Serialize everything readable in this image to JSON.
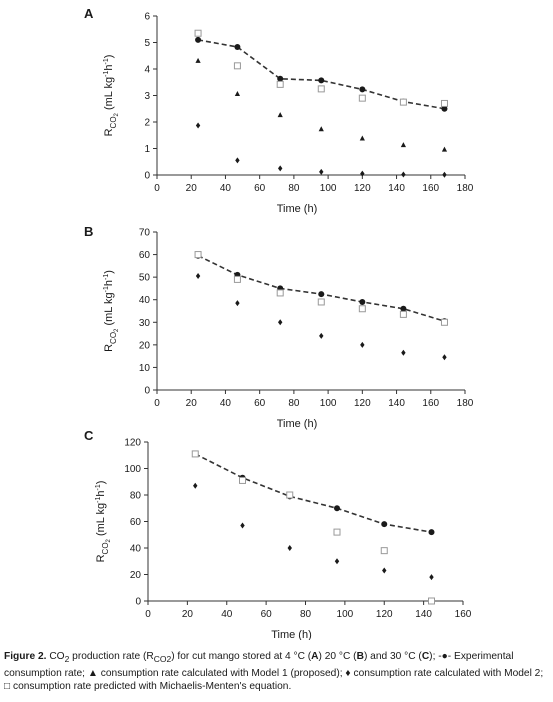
{
  "chart_data": [
    {
      "type": "line",
      "panel_label": "A",
      "xlabel": "Time (h)",
      "ylabel": "R<sub>CO2</sub> (mL kg⁻¹h⁻¹)",
      "ylabel_parts": {
        "main": "R",
        "sub": "CO",
        "sub2": "2",
        "units": "(mL kg",
        "exp1": "-1",
        "units2": "h",
        "exp2": "-1",
        "close": ")"
      },
      "xlim": [
        0,
        180
      ],
      "ylim": [
        0,
        6
      ],
      "xticks": [
        0,
        20,
        40,
        60,
        80,
        100,
        120,
        140,
        160,
        180
      ],
      "yticks": [
        0,
        1,
        2,
        3,
        4,
        5,
        6
      ],
      "x": [
        24,
        47,
        72,
        96,
        120,
        144,
        168
      ],
      "series": [
        {
          "name": "Experimental consumption rate",
          "marker": "circle",
          "line": "dashed",
          "values": [
            5.1,
            4.83,
            3.63,
            3.57,
            3.23,
            2.77,
            2.5
          ]
        },
        {
          "name": "consumption rate calculated with Model 1 (proposed)",
          "marker": "triangle",
          "values": [
            4.3,
            3.05,
            2.25,
            1.72,
            1.37,
            1.12,
            0.95
          ]
        },
        {
          "name": "consumption rate calculated with Model 2",
          "marker": "diamond",
          "values": [
            1.87,
            0.55,
            0.25,
            0.12,
            0.05,
            0.02,
            0.01
          ]
        },
        {
          "name": "consumption rate predicted with Michaelis-Menten's equation",
          "marker": "square",
          "values": [
            5.35,
            4.12,
            3.42,
            3.25,
            2.9,
            2.75,
            2.7
          ]
        }
      ]
    },
    {
      "type": "line",
      "panel_label": "B",
      "xlabel": "Time (h)",
      "ylabel_parts": {
        "main": "R",
        "sub": "CO",
        "sub2": "2",
        "units": "(mL kg",
        "exp1": "-1",
        "units2": "h",
        "exp2": "-1",
        "close": ")"
      },
      "xlim": [
        0,
        180
      ],
      "ylim": [
        0,
        70
      ],
      "xticks": [
        0,
        20,
        40,
        60,
        80,
        100,
        120,
        140,
        160,
        180
      ],
      "yticks": [
        0,
        10,
        20,
        30,
        40,
        50,
        60,
        70
      ],
      "x": [
        24,
        47,
        72,
        96,
        120,
        144,
        168
      ],
      "series": [
        {
          "name": "Experimental consumption rate",
          "marker": "circle",
          "line": "dashed",
          "values": [
            59.5,
            51.0,
            45.0,
            42.5,
            39.0,
            36.0,
            30.5
          ]
        },
        {
          "name": "consumption rate calculated with Model 2",
          "marker": "diamond",
          "values": [
            50.5,
            38.5,
            30.0,
            24.0,
            20.0,
            16.5,
            14.5
          ]
        },
        {
          "name": "consumption rate predicted with Michaelis-Menten's equation",
          "marker": "square",
          "values": [
            60.0,
            49.0,
            43.0,
            39.0,
            36.0,
            33.5,
            30.0
          ]
        }
      ]
    },
    {
      "type": "line",
      "panel_label": "C",
      "xlabel": "Time (h)",
      "ylabel_parts": {
        "main": "R",
        "sub": "CO",
        "sub2": "2",
        "units": "(mL kg",
        "exp1": "-1",
        "units2": "h",
        "exp2": "-1",
        "close": ")"
      },
      "xlim": [
        0,
        160
      ],
      "ylim": [
        0,
        120
      ],
      "xticks": [
        0,
        20,
        40,
        60,
        80,
        100,
        120,
        140,
        160
      ],
      "yticks": [
        0,
        20,
        40,
        60,
        80,
        100,
        120
      ],
      "x": [
        24,
        48,
        72,
        96,
        120,
        144
      ],
      "series": [
        {
          "name": "Experimental consumption rate",
          "marker": "circle",
          "line": "dashed",
          "values": [
            111,
            93,
            79,
            70,
            58,
            52
          ]
        },
        {
          "name": "consumption rate calculated with Model 2",
          "marker": "diamond",
          "values": [
            87,
            57,
            40,
            30,
            23,
            18
          ]
        },
        {
          "name": "consumption rate predicted with Michaelis-Menten's equation",
          "marker": "square",
          "values": [
            111,
            91,
            80,
            52,
            38,
            0
          ]
        }
      ]
    }
  ],
  "caption": {
    "label": "Figure 2.",
    "t1": "CO",
    "t1_sub": "2",
    "t2": "production rate (R",
    "t2_sub": "CO2",
    "t3": ") for cut mango stored at 4 °C (",
    "a": "A",
    "t4": ") 20 °C (",
    "b": "B",
    "t5": ") and 30 °C (",
    "c": "C",
    "t6": "); ",
    "sym_exp": "-●-",
    "t7": "Experimental consumption rate;",
    "sym_m1": "▲",
    "t8": "consumption rate calculated with Model 1 (proposed);",
    "sym_m2": "♦",
    "t9": "consumption rate calculated with Model 2;",
    "sym_mm": "□",
    "t10": "consumption rate predicted with Michaelis-Menten's equation."
  },
  "colors": {
    "ink": "#1a1a1a",
    "square_marker": "#999999",
    "axis": "#333333"
  }
}
